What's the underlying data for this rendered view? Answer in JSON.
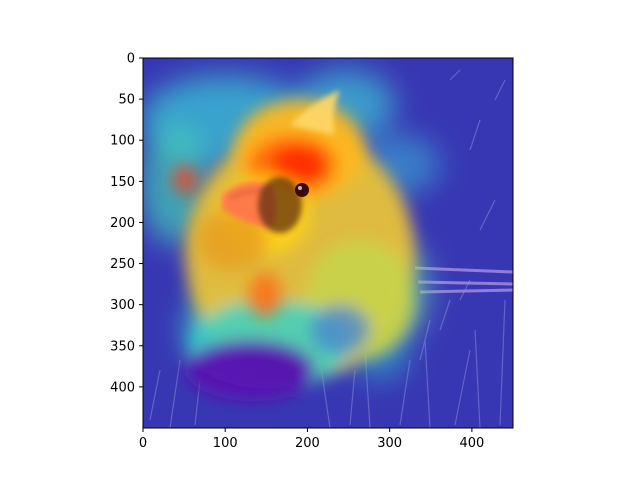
{
  "chart_data": {
    "type": "heatmap",
    "title": "",
    "xlabel": "",
    "ylabel": "",
    "xlim": [
      0,
      450
    ],
    "ylim": [
      450,
      0
    ],
    "grid": false,
    "xticks": [
      0,
      100,
      200,
      300,
      400
    ],
    "yticks": [
      0,
      50,
      100,
      150,
      200,
      250,
      300,
      350,
      400
    ],
    "image_content": "photo of a fluffy orange-red bird (cardinal) on grass overlaid with a jet-colormap saliency heatmap",
    "colormap": "jet",
    "hotspots": [
      {
        "name": "bird-head",
        "x": 185,
        "y": 150,
        "level": 1.0
      },
      {
        "name": "bird-cheek",
        "x": 150,
        "y": 195,
        "level": 0.85
      },
      {
        "name": "bird-neck",
        "x": 165,
        "y": 275,
        "level": 0.75
      },
      {
        "name": "left-patch",
        "x": 50,
        "y": 145,
        "level": 0.6
      },
      {
        "name": "crest",
        "x": 230,
        "y": 120,
        "level": 0.55
      },
      {
        "name": "upper-ring",
        "x": 145,
        "y": 60,
        "level": 0.35
      }
    ],
    "colors": {
      "background": "#2f2aa8",
      "hot": "#ff2a00",
      "warm": "#ffd21a",
      "cool": "#3ad1c4",
      "cold": "#1a1ab0",
      "belly": "#5a0fb0"
    }
  }
}
